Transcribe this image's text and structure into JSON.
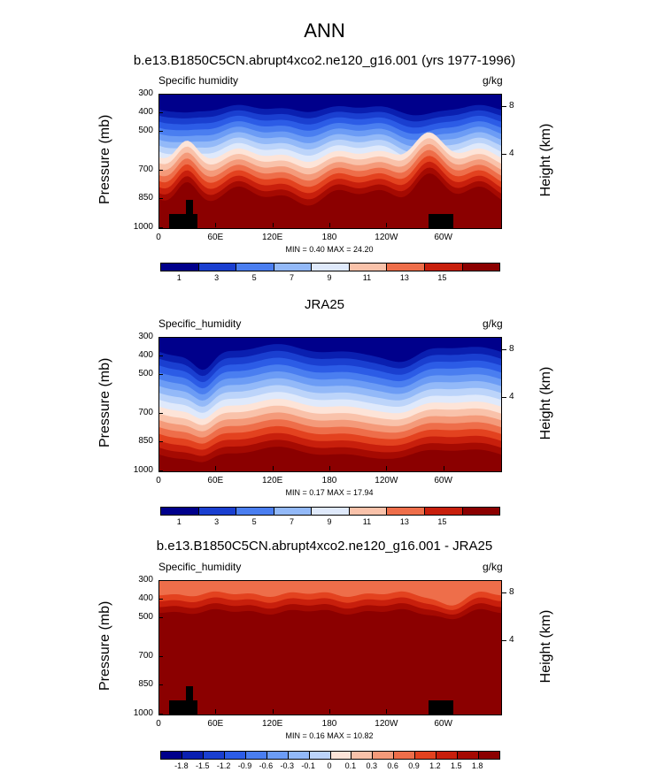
{
  "main_title": "ANN",
  "chart_data": [
    {
      "type": "heatmap",
      "title": "b.e13.B1850C5CN.abrupt4xco2.ne120_g16.001 (yrs 1977-1996)",
      "left_label": "Specific humidity",
      "units": "g/kg",
      "ylabel": "Pressure (mb)",
      "ylabel_right": "Height (km)",
      "x_ticks": [
        "0",
        "60E",
        "120E",
        "180",
        "120W",
        "60W"
      ],
      "y_ticks": [
        "300",
        "400",
        "500",
        "700",
        "850",
        "1000"
      ],
      "y_right_ticks": [
        "8",
        "4"
      ],
      "min_max": "MIN =   0.40  MAX =  24.20",
      "colorbar_labels": [
        "1",
        "3",
        "5",
        "7",
        "9",
        "11",
        "13",
        "15"
      ],
      "palette": "div",
      "profile": "model"
    },
    {
      "type": "heatmap",
      "title": "JRA25",
      "left_label": "Specific_humidity",
      "units": "g/kg",
      "ylabel": "Pressure (mb)",
      "ylabel_right": "Height (km)",
      "x_ticks": [
        "0",
        "60E",
        "120E",
        "180",
        "120W",
        "60W"
      ],
      "y_ticks": [
        "300",
        "400",
        "500",
        "700",
        "850",
        "1000"
      ],
      "y_right_ticks": [
        "8",
        "4"
      ],
      "min_max": "MIN =   0.17  MAX =  17.94",
      "colorbar_labels": [
        "1",
        "3",
        "5",
        "7",
        "9",
        "11",
        "13",
        "15"
      ],
      "palette": "div",
      "profile": "obs"
    },
    {
      "type": "heatmap",
      "title": "b.e13.B1850C5CN.abrupt4xco2.ne120_g16.001 - JRA25",
      "left_label": "Specific_humidity",
      "units": "g/kg",
      "ylabel": "Pressure (mb)",
      "ylabel_right": "Height (km)",
      "x_ticks": [
        "0",
        "60E",
        "120E",
        "180",
        "120W",
        "60W"
      ],
      "y_ticks": [
        "300",
        "400",
        "500",
        "700",
        "850",
        "1000"
      ],
      "y_right_ticks": [
        "8",
        "4"
      ],
      "min_max": "MIN =   0.16  MAX =  10.82",
      "colorbar_labels": [
        "-1.8",
        "-1.5",
        "-1.2",
        "-0.9",
        "-0.6",
        "-0.3",
        "-0.1",
        "0",
        "0.1",
        "0.3",
        "0.6",
        "0.9",
        "1.2",
        "1.5",
        "1.8"
      ],
      "palette": "div",
      "profile": "diff"
    }
  ],
  "colors": {
    "palette": [
      "#00008b",
      "#0a1fb0",
      "#1a3fd0",
      "#2c5ce6",
      "#4a7ef0",
      "#6c9cf5",
      "#93b9f8",
      "#bcd4fa",
      "#dfe9fb",
      "#fde4d8",
      "#f9c2aa",
      "#f49a7a",
      "#ee6e4a",
      "#e3421f",
      "#c81f0c",
      "#a50a02",
      "#8b0000"
    ]
  }
}
